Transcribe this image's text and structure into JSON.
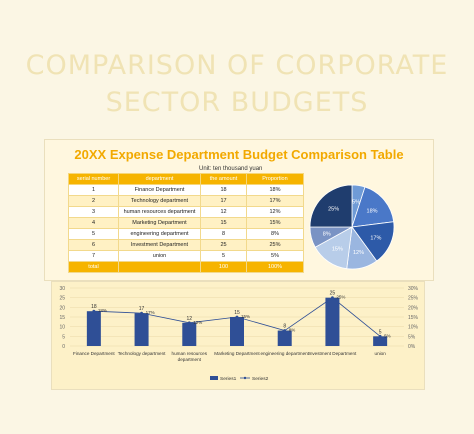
{
  "page": {
    "title_line1": "COMPARISON OF CORPORATE",
    "title_line2": "SECTOR BUDGETS"
  },
  "table": {
    "title": "20XX Expense Department Budget Comparison Table",
    "unit": "Unit: ten thousand yuan",
    "headers": [
      "serial number",
      "department",
      "the amount",
      "Proportion"
    ],
    "rows": [
      {
        "serial": "1",
        "department": "Finance Department",
        "amount": "18",
        "proportion": "18%"
      },
      {
        "serial": "2",
        "department": "Technology department",
        "amount": "17",
        "proportion": "17%"
      },
      {
        "serial": "3",
        "department": "human resources department",
        "amount": "12",
        "proportion": "12%"
      },
      {
        "serial": "4",
        "department": "Marketing Department",
        "amount": "15",
        "proportion": "15%"
      },
      {
        "serial": "5",
        "department": "engineering department",
        "amount": "8",
        "proportion": "8%"
      },
      {
        "serial": "6",
        "department": "Investment Department",
        "amount": "25",
        "proportion": "25%"
      },
      {
        "serial": "7",
        "department": "union",
        "amount": "5",
        "proportion": "5%"
      }
    ],
    "total": {
      "label": "total",
      "amount": "100",
      "proportion": "100%"
    }
  },
  "chart_data": [
    {
      "type": "pie",
      "labels": [
        "5%",
        "18%",
        "17%",
        "12%",
        "15%",
        "8%",
        "25%"
      ],
      "values": [
        5,
        18,
        17,
        12,
        15,
        8,
        25
      ],
      "colors": [
        "#6f9bd6",
        "#4a78c8",
        "#2d5aa8",
        "#9ab6e0",
        "#b8cde9",
        "#7a93c4",
        "#1f3d6e"
      ]
    },
    {
      "type": "bar",
      "categories": [
        "Finance Department",
        "Technology department",
        "human resources department",
        "Marketing Department",
        "engineering department",
        "Investment Department",
        "union"
      ],
      "series": [
        {
          "name": "Series1",
          "values": [
            18,
            17,
            12,
            15,
            8,
            25,
            5
          ],
          "color": "#2f4f96"
        },
        {
          "name": "Series2",
          "values": [
            18,
            17,
            12,
            15,
            8,
            25,
            5
          ],
          "color": "#2f4f96"
        }
      ],
      "series2_labels": [
        "18%",
        "17%",
        "12%",
        "15%",
        "8%",
        "25%",
        "5%"
      ],
      "left_ticks": [
        "30",
        "25",
        "20",
        "15",
        "10",
        "5",
        "0"
      ],
      "right_ticks": [
        "30%",
        "25%",
        "20%",
        "15%",
        "10%",
        "5%",
        "0%"
      ],
      "ylim": [
        0,
        30
      ]
    }
  ]
}
